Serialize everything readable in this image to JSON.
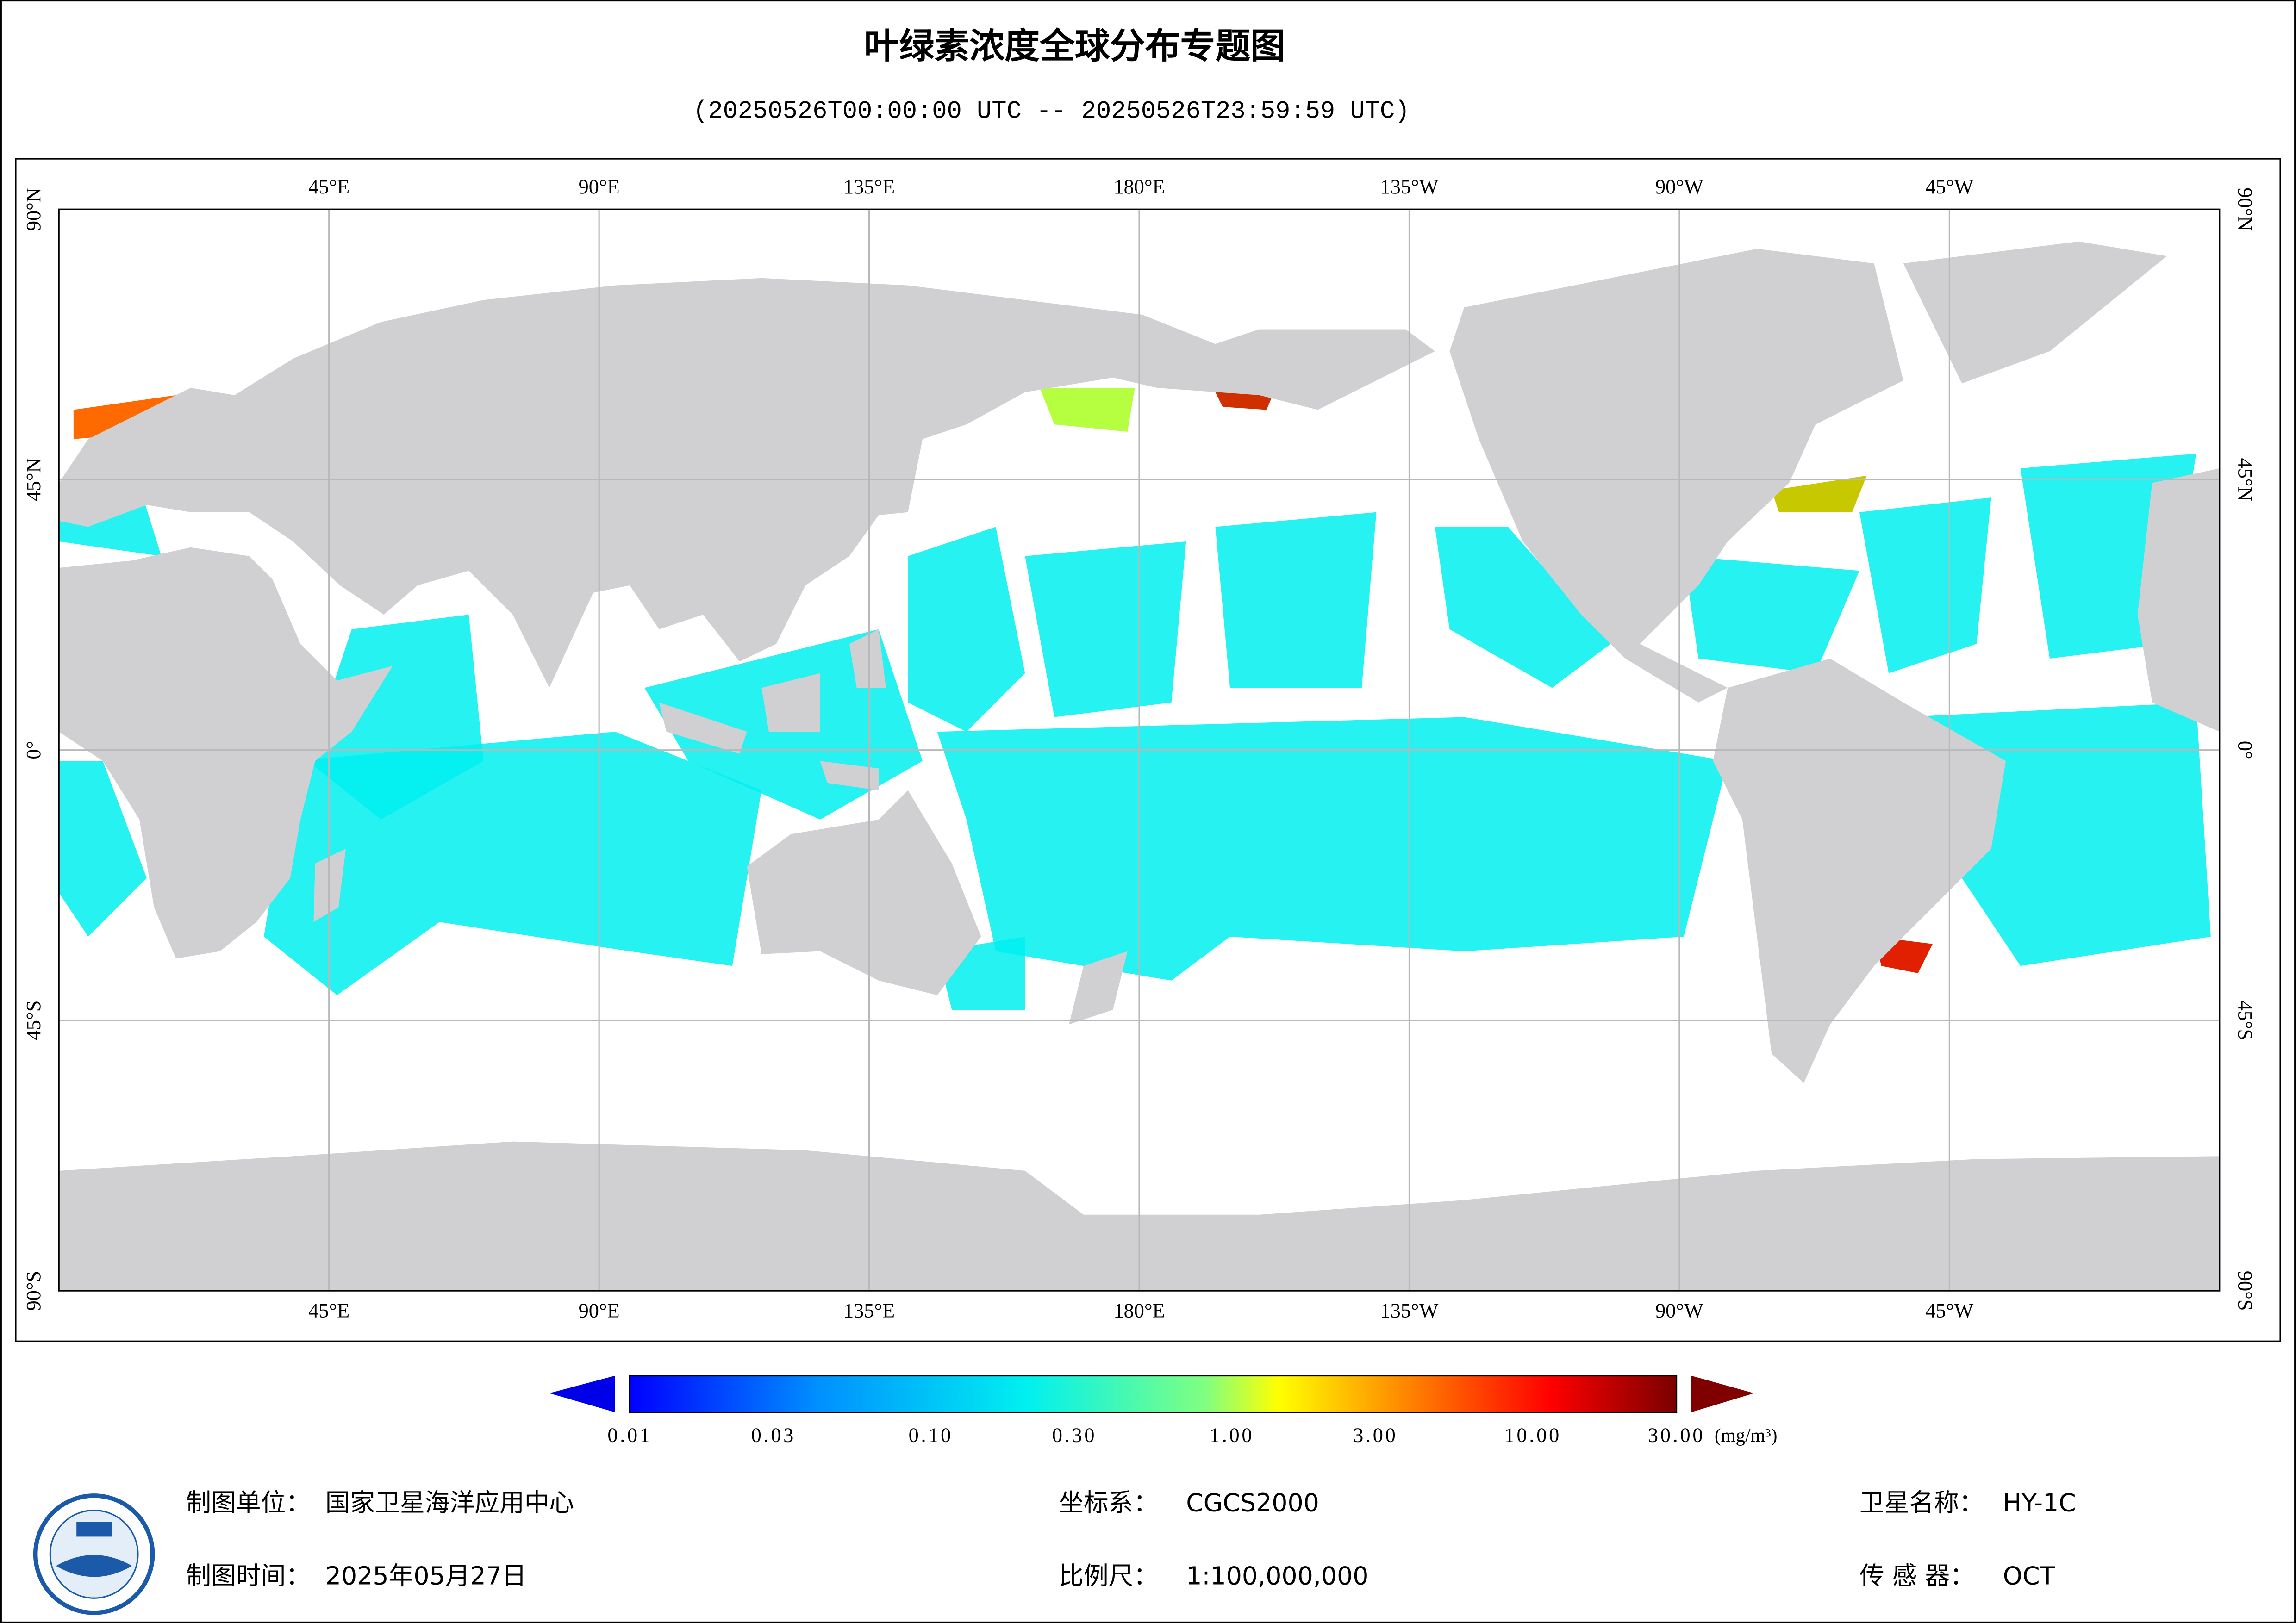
{
  "header": {
    "title": "叶绿素浓度全球分布专题图",
    "subtitle": "(20250526T00:00:00 UTC -- 20250526T23:59:59 UTC)"
  },
  "map": {
    "lon_labels": [
      "45°E",
      "90°E",
      "135°E",
      "180°E",
      "135°W",
      "90°W",
      "45°W"
    ],
    "lat_labels": [
      "90°N",
      "45°N",
      "0°",
      "45°S",
      "90°S"
    ]
  },
  "colorbar": {
    "range": [
      0.01,
      30
    ],
    "log": true,
    "ticks": [
      0.01,
      0.03,
      {
        "value": 0.1,
        "label": "0.10"
      },
      {
        "value": 0.3,
        "label": "0.30"
      },
      {
        "value": 1,
        "label": "1.00"
      },
      {
        "value": 3,
        "label": "3.00"
      },
      {
        "value": 10,
        "label": "10.00"
      },
      {
        "value": 30,
        "label": "30.00"
      }
    ],
    "unit": "(mg/m³)"
  },
  "footer": {
    "unit_label": "制图单位：",
    "unit": "国家卫星海洋应用中心",
    "date_label": "制图时间：",
    "date": "2025年05月27日",
    "crs_label": "坐标系：",
    "crs": "CGCS2000",
    "scale_label": "比例尺：",
    "scale": "1:100,000,000",
    "satellite_label": "卫星名称：",
    "satellite": "HY-1C",
    "sensor_label": "传 感 器：",
    "sensor": "OCT"
  }
}
